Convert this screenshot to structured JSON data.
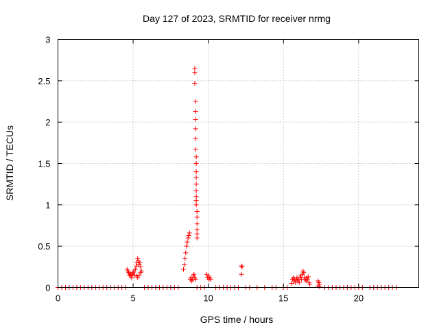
{
  "chart_data": {
    "type": "scatter",
    "title": "Day 127 of 2023, SRMTID for receiver nrmg",
    "xlabel": "GPS time / hours",
    "ylabel": "SRMTID / TECUs",
    "xlim": [
      0,
      24
    ],
    "ylim": [
      0,
      3
    ],
    "xticks": [
      0,
      5,
      10,
      15,
      20
    ],
    "yticks": [
      0,
      0.5,
      1,
      1.5,
      2,
      2.5,
      3
    ],
    "xtick_labels": [
      "0",
      "5",
      "10",
      "15",
      "20"
    ],
    "ytick_labels": [
      "0",
      "0.5",
      "1",
      "1.5",
      "2",
      "2.5",
      "3"
    ],
    "grid": true,
    "marker": "plus",
    "color": "#ff0000",
    "series": [
      {
        "points": [
          [
            0.0,
            0
          ],
          [
            0.25,
            0
          ],
          [
            0.5,
            0
          ],
          [
            0.75,
            0
          ],
          [
            1.0,
            0
          ],
          [
            1.25,
            0
          ],
          [
            1.5,
            0
          ],
          [
            1.75,
            0
          ],
          [
            2.0,
            0
          ],
          [
            2.25,
            0
          ],
          [
            2.5,
            0
          ],
          [
            2.75,
            0
          ],
          [
            3.0,
            0
          ],
          [
            3.25,
            0
          ],
          [
            3.5,
            0
          ],
          [
            3.75,
            0
          ],
          [
            4.0,
            0
          ],
          [
            4.25,
            0
          ],
          [
            4.5,
            0
          ],
          [
            5.75,
            0
          ],
          [
            6.0,
            0
          ],
          [
            6.25,
            0
          ],
          [
            6.5,
            0
          ],
          [
            6.75,
            0
          ],
          [
            7.0,
            0
          ],
          [
            7.25,
            0
          ],
          [
            7.5,
            0
          ],
          [
            7.75,
            0
          ],
          [
            8.0,
            0
          ],
          [
            9.25,
            0
          ],
          [
            9.5,
            0
          ],
          [
            9.75,
            0
          ],
          [
            10.5,
            0
          ],
          [
            10.75,
            0
          ],
          [
            11.0,
            0
          ],
          [
            11.25,
            0
          ],
          [
            11.5,
            0
          ],
          [
            11.75,
            0
          ],
          [
            12.0,
            0
          ],
          [
            12.5,
            0
          ],
          [
            12.75,
            0
          ],
          [
            13.25,
            0
          ],
          [
            13.75,
            0
          ],
          [
            14.25,
            0
          ],
          [
            14.5,
            0
          ],
          [
            15.0,
            0
          ],
          [
            15.25,
            0
          ],
          [
            17.75,
            0
          ],
          [
            18.0,
            0
          ],
          [
            18.25,
            0
          ],
          [
            18.5,
            0
          ],
          [
            18.75,
            0
          ],
          [
            19.0,
            0
          ],
          [
            19.25,
            0
          ],
          [
            19.5,
            0
          ],
          [
            19.75,
            0
          ],
          [
            20.0,
            0
          ],
          [
            20.25,
            0
          ],
          [
            20.75,
            0
          ],
          [
            21.0,
            0
          ],
          [
            21.25,
            0
          ],
          [
            21.5,
            0
          ],
          [
            21.75,
            0
          ],
          [
            22.0,
            0
          ],
          [
            22.25,
            0
          ],
          [
            22.5,
            0
          ],
          [
            4.6,
            0.22
          ],
          [
            4.65,
            0.2
          ],
          [
            4.7,
            0.18
          ],
          [
            4.75,
            0.15
          ],
          [
            4.8,
            0.17
          ],
          [
            4.85,
            0.14
          ],
          [
            4.9,
            0.12
          ],
          [
            4.95,
            0.16
          ],
          [
            5.0,
            0.18
          ],
          [
            5.05,
            0.2
          ],
          [
            5.1,
            0.15
          ],
          [
            5.15,
            0.22
          ],
          [
            5.2,
            0.26
          ],
          [
            5.25,
            0.3
          ],
          [
            5.3,
            0.35
          ],
          [
            5.35,
            0.32
          ],
          [
            5.4,
            0.28
          ],
          [
            5.45,
            0.3
          ],
          [
            5.5,
            0.25
          ],
          [
            5.55,
            0.2
          ],
          [
            5.3,
            0.12
          ],
          [
            5.4,
            0.15
          ],
          [
            5.5,
            0.18
          ],
          [
            5.25,
            0.14
          ],
          [
            8.35,
            0.22
          ],
          [
            8.4,
            0.28
          ],
          [
            8.45,
            0.35
          ],
          [
            8.5,
            0.42
          ],
          [
            8.55,
            0.5
          ],
          [
            8.6,
            0.55
          ],
          [
            8.65,
            0.6
          ],
          [
            8.7,
            0.63
          ],
          [
            8.75,
            0.66
          ],
          [
            8.8,
            0.1
          ],
          [
            8.85,
            0.12
          ],
          [
            8.9,
            0.08
          ],
          [
            8.95,
            0.1
          ],
          [
            9.0,
            0.14
          ],
          [
            9.05,
            0.16
          ],
          [
            9.1,
            0.12
          ],
          [
            9.15,
            0.1
          ],
          [
            9.1,
            2.65
          ],
          [
            9.1,
            2.6
          ],
          [
            9.1,
            2.47
          ],
          [
            9.15,
            2.25
          ],
          [
            9.15,
            2.13
          ],
          [
            9.15,
            2.03
          ],
          [
            9.15,
            1.92
          ],
          [
            9.15,
            1.8
          ],
          [
            9.15,
            1.67
          ],
          [
            9.2,
            1.58
          ],
          [
            9.2,
            1.5
          ],
          [
            9.2,
            1.4
          ],
          [
            9.2,
            1.33
          ],
          [
            9.2,
            1.25
          ],
          [
            9.2,
            1.17
          ],
          [
            9.2,
            1.1
          ],
          [
            9.2,
            1.05
          ],
          [
            9.2,
            1.0
          ],
          [
            9.25,
            0.92
          ],
          [
            9.25,
            0.85
          ],
          [
            9.25,
            0.77
          ],
          [
            9.25,
            0.7
          ],
          [
            9.25,
            0.65
          ],
          [
            9.25,
            0.6
          ],
          [
            9.9,
            0.16
          ],
          [
            9.95,
            0.12
          ],
          [
            10.0,
            0.14
          ],
          [
            10.05,
            0.1
          ],
          [
            10.1,
            0.12
          ],
          [
            10.15,
            0.1
          ],
          [
            12.2,
            0.26
          ],
          [
            12.25,
            0.25
          ],
          [
            12.2,
            0.16
          ],
          [
            15.55,
            0.05
          ],
          [
            15.6,
            0.1
          ],
          [
            15.65,
            0.12
          ],
          [
            15.7,
            0.08
          ],
          [
            15.75,
            0.1
          ],
          [
            15.8,
            0.06
          ],
          [
            15.85,
            0.1
          ],
          [
            15.9,
            0.12
          ],
          [
            15.95,
            0.08
          ],
          [
            16.0,
            0.1
          ],
          [
            16.05,
            0.06
          ],
          [
            16.1,
            0.12
          ],
          [
            16.15,
            0.14
          ],
          [
            16.2,
            0.1
          ],
          [
            16.25,
            0.16
          ],
          [
            16.3,
            0.2
          ],
          [
            16.35,
            0.18
          ],
          [
            16.4,
            0.12
          ],
          [
            16.45,
            0.1
          ],
          [
            16.5,
            0.08
          ],
          [
            16.55,
            0.12
          ],
          [
            16.6,
            0.1
          ],
          [
            16.65,
            0.13
          ],
          [
            16.7,
            0.06
          ],
          [
            16.75,
            0.04
          ],
          [
            17.3,
            0.08
          ],
          [
            17.35,
            0.06
          ],
          [
            17.4,
            0.04
          ],
          [
            17.3,
            0.02
          ],
          [
            17.4,
            0.01
          ]
        ]
      }
    ]
  }
}
